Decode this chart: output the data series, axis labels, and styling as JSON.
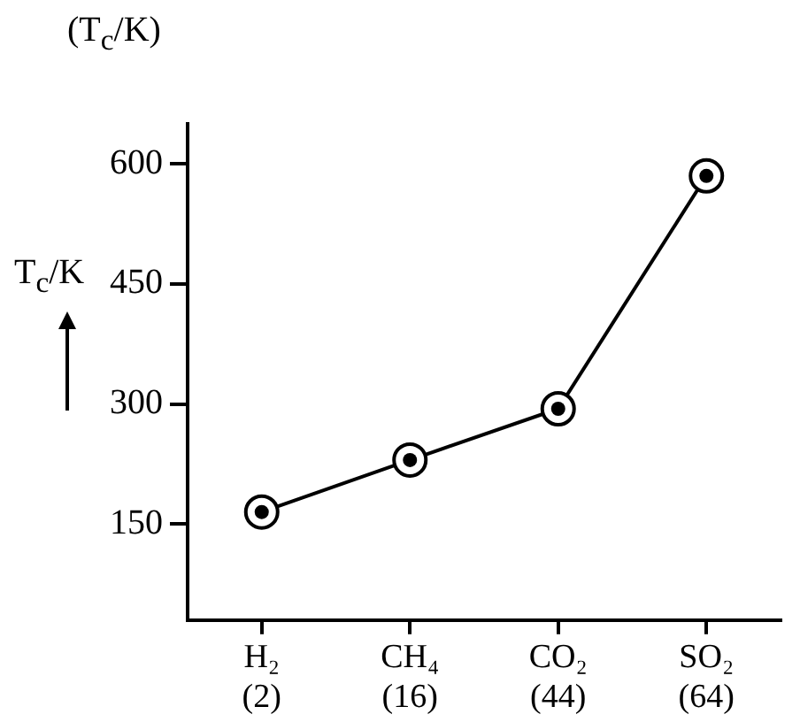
{
  "chart_data": {
    "type": "line",
    "title": "(T$_{c}$/K)",
    "ylabel": "T$_{c}$/K",
    "categories": [
      "H₂\n(2)",
      "CH₄\n(16)",
      "CO₂\n(44)",
      "SO₂\n(64)"
    ],
    "values": [
      165,
      230,
      294,
      585
    ],
    "color": "#000000",
    "ylim": [
      30,
      650
    ],
    "yticks": [
      150,
      300,
      450,
      600
    ],
    "marker": "circle",
    "grid": false,
    "legend": false
  }
}
